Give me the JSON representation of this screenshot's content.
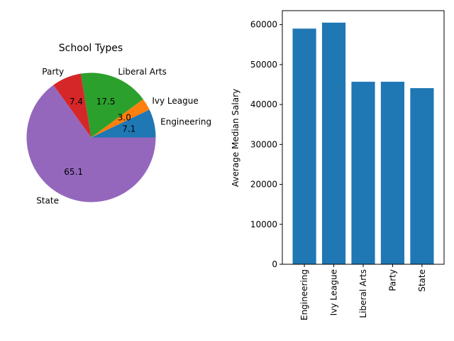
{
  "chart_data": [
    {
      "type": "pie",
      "title": "School Types",
      "categories": [
        "Engineering",
        "Ivy League",
        "Liberal Arts",
        "Party",
        "State"
      ],
      "values": [
        7.1,
        3.0,
        17.5,
        7.4,
        65.1
      ],
      "value_labels": [
        "7.1",
        "3.0",
        "17.5",
        "7.4",
        "65.1"
      ],
      "colors": [
        "#1f77b4",
        "#ff7f0e",
        "#2ca02c",
        "#d62728",
        "#9467bd"
      ],
      "start_angle_deg": 0,
      "direction": "counterclockwise",
      "legend": "none"
    },
    {
      "type": "bar",
      "title": "",
      "categories": [
        "Engineering",
        "Ivy League",
        "Liberal Arts",
        "Party",
        "State"
      ],
      "values": [
        59000,
        60500,
        45700,
        45700,
        44100
      ],
      "xlabel": "",
      "ylabel": "Average Median Salary",
      "ylim": [
        0,
        63500
      ],
      "yticks": [
        0,
        10000,
        20000,
        30000,
        40000,
        50000,
        60000
      ],
      "ytick_labels": [
        "0",
        "10000",
        "20000",
        "30000",
        "40000",
        "50000",
        "60000"
      ],
      "color": "#1f77b4",
      "xtick_rotation": "vertical",
      "grid": false,
      "legend": "none"
    }
  ]
}
